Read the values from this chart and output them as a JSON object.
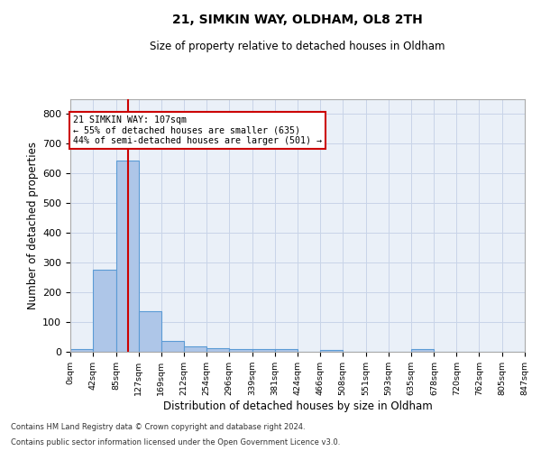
{
  "title1": "21, SIMKIN WAY, OLDHAM, OL8 2TH",
  "title2": "Size of property relative to detached houses in Oldham",
  "xlabel": "Distribution of detached houses by size in Oldham",
  "ylabel": "Number of detached properties",
  "footer1": "Contains HM Land Registry data © Crown copyright and database right 2024.",
  "footer2": "Contains public sector information licensed under the Open Government Licence v3.0.",
  "bin_edges": [
    0,
    42,
    85,
    127,
    169,
    212,
    254,
    296,
    339,
    381,
    424,
    466,
    508,
    551,
    593,
    635,
    678,
    720,
    762,
    805,
    847
  ],
  "bar_heights": [
    8,
    275,
    645,
    138,
    35,
    18,
    13,
    10,
    10,
    10,
    0,
    5,
    0,
    0,
    0,
    8,
    0,
    0,
    0,
    0
  ],
  "bar_color": "#aec6e8",
  "bar_edgecolor": "#5b9bd5",
  "grid_color": "#c8d4e8",
  "background_color": "#eaf0f8",
  "vline_x": 107,
  "vline_color": "#cc0000",
  "annotation_text": "21 SIMKIN WAY: 107sqm\n← 55% of detached houses are smaller (635)\n44% of semi-detached houses are larger (501) →",
  "annotation_box_edgecolor": "#cc0000",
  "ylim": [
    0,
    850
  ],
  "yticks": [
    0,
    100,
    200,
    300,
    400,
    500,
    600,
    700,
    800
  ],
  "tick_labels": [
    "0sqm",
    "42sqm",
    "85sqm",
    "127sqm",
    "169sqm",
    "212sqm",
    "254sqm",
    "296sqm",
    "339sqm",
    "381sqm",
    "424sqm",
    "466sqm",
    "508sqm",
    "551sqm",
    "593sqm",
    "635sqm",
    "678sqm",
    "720sqm",
    "762sqm",
    "805sqm",
    "847sqm"
  ]
}
